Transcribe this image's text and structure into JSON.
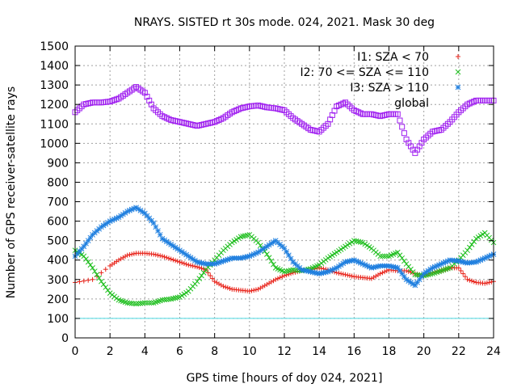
{
  "chart_data": {
    "type": "scatter",
    "title": "NRAYS. SISTED rt 30s mode. 024, 2021. Mask 30 deg",
    "xlabel": "GPS time [hours of doy 024, 2021]",
    "ylabel": "Number of GPS receiver-satellite rays",
    "xlim": [
      0,
      24
    ],
    "ylim": [
      0,
      1500
    ],
    "xticks": [
      "0",
      "2",
      "4",
      "6",
      "8",
      "10",
      "12",
      "14",
      "16",
      "18",
      "20",
      "22",
      "24"
    ],
    "yticks": [
      "0",
      "100",
      "200",
      "300",
      "400",
      "500",
      "600",
      "700",
      "800",
      "900",
      "1000",
      "1100",
      "1200",
      "1300",
      "1400",
      "1500"
    ],
    "grid": true,
    "legend_position": "top-right",
    "reference_line": {
      "y": 100,
      "color": "#4dd9e0"
    },
    "series": [
      {
        "name": "I1: SZA < 70",
        "marker": "+",
        "color": "#e8231a",
        "x": [
          0,
          1,
          2,
          2.5,
          3,
          3.5,
          4,
          4.5,
          5,
          5.5,
          6,
          6.5,
          7,
          7.5,
          8,
          8.5,
          9,
          9.5,
          10,
          10.5,
          11,
          11.5,
          12,
          12.5,
          13,
          13.5,
          14,
          14.5,
          15,
          15.5,
          16,
          16.5,
          17,
          17.5,
          18,
          18.5,
          19,
          19.5,
          20,
          20.5,
          21,
          21.5,
          22,
          22.5,
          23,
          23.5,
          24
        ],
        "y": [
          285,
          300,
          370,
          400,
          425,
          435,
          435,
          430,
          420,
          405,
          390,
          375,
          365,
          350,
          290,
          265,
          250,
          245,
          240,
          250,
          275,
          300,
          320,
          335,
          345,
          350,
          360,
          350,
          335,
          325,
          315,
          310,
          305,
          330,
          350,
          345,
          345,
          330,
          320,
          335,
          345,
          360,
          360,
          300,
          285,
          280,
          290
        ]
      },
      {
        "name": "I2: 70 <= SZA <= 110",
        "marker": "x",
        "color": "#1fbf1f",
        "x": [
          0,
          0.5,
          1,
          1.5,
          2,
          2.5,
          3,
          3.5,
          4,
          4.5,
          5,
          5.5,
          6,
          6.5,
          7,
          7.5,
          8,
          8.5,
          9,
          9.5,
          10,
          10.5,
          11,
          11.5,
          12,
          12.5,
          13,
          13.5,
          14,
          14.5,
          15,
          15.5,
          16,
          16.5,
          17,
          17.5,
          18,
          18.5,
          19,
          19.5,
          20,
          20.5,
          21,
          21.5,
          22,
          22.5,
          23,
          23.5,
          24
        ],
        "y": [
          450,
          420,
          360,
          290,
          230,
          195,
          180,
          175,
          180,
          180,
          195,
          200,
          210,
          240,
          290,
          350,
          400,
          450,
          490,
          520,
          530,
          490,
          430,
          360,
          340,
          350,
          345,
          355,
          375,
          410,
          440,
          470,
          500,
          490,
          460,
          420,
          420,
          440,
          380,
          325,
          320,
          330,
          345,
          360,
          400,
          450,
          510,
          540,
          490
        ]
      },
      {
        "name": "I3: SZA > 110",
        "marker": "*",
        "color": "#1f7fdf",
        "x": [
          0,
          0.5,
          1,
          1.5,
          2,
          2.5,
          3,
          3.5,
          4,
          4.5,
          5,
          5.5,
          6,
          6.5,
          7,
          7.5,
          8,
          8.5,
          9,
          9.5,
          10,
          10.5,
          11,
          11.5,
          12,
          12.5,
          13,
          13.5,
          14,
          14.5,
          15,
          15.5,
          16,
          16.5,
          17,
          17.5,
          18,
          18.5,
          19,
          19.5,
          20,
          20.5,
          21,
          21.5,
          22,
          22.5,
          23,
          23.5,
          24
        ],
        "y": [
          420,
          470,
          530,
          570,
          600,
          620,
          650,
          670,
          640,
          590,
          510,
          480,
          450,
          420,
          390,
          380,
          380,
          395,
          410,
          410,
          420,
          440,
          470,
          500,
          460,
          390,
          350,
          340,
          330,
          340,
          360,
          390,
          400,
          380,
          360,
          370,
          370,
          360,
          300,
          270,
          330,
          360,
          380,
          400,
          395,
          385,
          390,
          410,
          430
        ]
      },
      {
        "name": "global",
        "marker": "square",
        "color": "#a020f0",
        "x": [
          0,
          0.5,
          1,
          1.5,
          2,
          2.5,
          3,
          3.5,
          4,
          4.5,
          5,
          5.5,
          6,
          6.5,
          7,
          7.5,
          8,
          8.5,
          9,
          9.5,
          10,
          10.5,
          11,
          11.5,
          12,
          12.5,
          13,
          13.5,
          14,
          14.5,
          15,
          15.5,
          16,
          16.5,
          17,
          17.5,
          18,
          18.5,
          19,
          19.5,
          20,
          20.5,
          21,
          21.5,
          22,
          22.5,
          23,
          23.5,
          24
        ],
        "y": [
          1160,
          1200,
          1210,
          1210,
          1215,
          1230,
          1260,
          1290,
          1260,
          1180,
          1140,
          1120,
          1110,
          1100,
          1090,
          1100,
          1110,
          1130,
          1160,
          1180,
          1190,
          1195,
          1185,
          1180,
          1170,
          1130,
          1100,
          1070,
          1060,
          1100,
          1190,
          1210,
          1170,
          1150,
          1150,
          1140,
          1150,
          1150,
          1020,
          950,
          1020,
          1060,
          1070,
          1110,
          1160,
          1200,
          1220,
          1220,
          1220
        ]
      }
    ]
  }
}
